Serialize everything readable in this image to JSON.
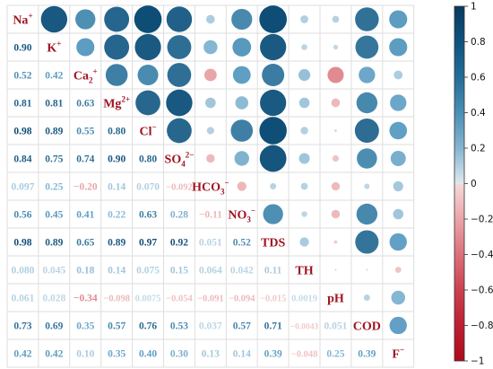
{
  "chart_data": {
    "type": "heatmap",
    "subtype": "correlation-matrix",
    "title": "",
    "variables": [
      "Na⁺",
      "K⁺",
      "Ca₂⁺",
      "Mg²⁺",
      "Cl⁻",
      "SO₄²⁻",
      "HCO₃⁻",
      "NO₃⁻",
      "TDS",
      "TH",
      "pH",
      "COD",
      "F⁻"
    ],
    "variable_label_parts": [
      {
        "base": "Na",
        "sup": "+",
        "sub": ""
      },
      {
        "base": "K",
        "sup": "+",
        "sub": ""
      },
      {
        "base": "Ca",
        "sup": "+",
        "sub": "2"
      },
      {
        "base": "Mg",
        "sup": "2+",
        "sub": ""
      },
      {
        "base": "Cl",
        "sup": "−",
        "sub": ""
      },
      {
        "base": "SO",
        "sup": "2−",
        "sub": "4"
      },
      {
        "base": "HCO",
        "sup": "−",
        "sub": "3"
      },
      {
        "base": "NO",
        "sup": "−",
        "sub": "3"
      },
      {
        "base": "TDS",
        "sup": "",
        "sub": ""
      },
      {
        "base": "TH",
        "sup": "",
        "sub": ""
      },
      {
        "base": "pH",
        "sup": "",
        "sub": ""
      },
      {
        "base": "COD",
        "sup": "",
        "sub": ""
      },
      {
        "base": "F",
        "sup": "−",
        "sub": ""
      }
    ],
    "matrix": [
      [
        1,
        0.9,
        0.52,
        0.81,
        0.98,
        0.84,
        0.097,
        0.56,
        0.98,
        0.08,
        0.061,
        0.73,
        0.42
      ],
      [
        0.9,
        1,
        0.42,
        0.81,
        0.89,
        0.75,
        0.25,
        0.45,
        0.89,
        0.045,
        0.028,
        0.69,
        0.42
      ],
      [
        0.52,
        0.42,
        1,
        0.63,
        0.55,
        0.74,
        -0.2,
        0.41,
        0.65,
        0.18,
        -0.34,
        0.35,
        0.1
      ],
      [
        0.81,
        0.81,
        0.63,
        1,
        0.8,
        0.9,
        0.14,
        0.22,
        0.89,
        0.14,
        -0.098,
        0.57,
        0.35
      ],
      [
        0.98,
        0.89,
        0.55,
        0.8,
        1,
        0.8,
        0.07,
        0.63,
        0.97,
        0.075,
        0.0075,
        0.76,
        0.4
      ],
      [
        0.84,
        0.75,
        0.74,
        0.9,
        0.8,
        1,
        -0.092,
        0.28,
        0.92,
        0.15,
        -0.054,
        0.53,
        0.3
      ],
      [
        0.097,
        0.25,
        -0.2,
        0.14,
        0.07,
        -0.092,
        1,
        -0.11,
        0.051,
        0.064,
        -0.091,
        0.037,
        0.13
      ],
      [
        0.56,
        0.45,
        0.41,
        0.22,
        0.63,
        0.28,
        -0.11,
        1,
        0.52,
        0.042,
        -0.094,
        0.57,
        0.14
      ],
      [
        0.98,
        0.89,
        0.65,
        0.89,
        0.97,
        0.92,
        0.051,
        0.52,
        1,
        0.11,
        -0.015,
        0.71,
        0.39
      ],
      [
        0.08,
        0.045,
        0.18,
        0.14,
        0.075,
        0.15,
        0.064,
        0.042,
        0.11,
        1,
        0.0019,
        -0.0043,
        -0.048
      ],
      [
        0.061,
        0.028,
        -0.34,
        -0.098,
        0.0075,
        -0.054,
        -0.091,
        -0.094,
        -0.015,
        0.0019,
        1,
        0.051,
        0.25
      ],
      [
        0.73,
        0.69,
        0.35,
        0.57,
        0.76,
        0.53,
        0.037,
        0.57,
        0.71,
        -0.0043,
        0.051,
        1,
        0.39
      ],
      [
        0.42,
        0.42,
        0.1,
        0.35,
        0.4,
        0.3,
        0.13,
        0.14,
        0.39,
        -0.048,
        0.25,
        0.39,
        1
      ]
    ],
    "lower_triangle_labels": [
      [],
      [
        "0.90"
      ],
      [
        "0.52",
        "0.42"
      ],
      [
        "0.81",
        "0.81",
        "0.63"
      ],
      [
        "0.98",
        "0.89",
        "0.55",
        "0.80"
      ],
      [
        "0.84",
        "0.75",
        "0.74",
        "0.90",
        "0.80"
      ],
      [
        "0.097",
        "0.25",
        "−0.20",
        "0.14",
        "0.070",
        "−0.092"
      ],
      [
        "0.56",
        "0.45",
        "0.41",
        "0.22",
        "0.63",
        "0.28",
        "−0.11"
      ],
      [
        "0.98",
        "0.89",
        "0.65",
        "0.89",
        "0.97",
        "0.92",
        "0.051",
        "0.52"
      ],
      [
        "0.080",
        "0.045",
        "0.18",
        "0.14",
        "0.075",
        "0.15",
        "0.064",
        "0.042",
        "0.11"
      ],
      [
        "0.061",
        "0.028",
        "−0.34",
        "−0.098",
        "0.0075",
        "−0.054",
        "−0.091",
        "−0.094",
        "−0.015",
        "0.0019"
      ],
      [
        "0.73",
        "0.69",
        "0.35",
        "0.57",
        "0.76",
        "0.53",
        "0.037",
        "0.57",
        "0.71",
        "−0.0043",
        "0.051"
      ],
      [
        "0.42",
        "0.42",
        "0.10",
        "0.35",
        "0.40",
        "0.30",
        "0.13",
        "0.14",
        "0.39",
        "−0.048",
        "0.25",
        "0.39"
      ]
    ],
    "lower_triangle": "numbers",
    "upper_triangle": "circles (size and color scale with correlation)",
    "diagonal": "variable names",
    "colorbar": {
      "ticks": [
        "1",
        "0.8",
        "0.6",
        "0.4",
        "0.2",
        "0",
        "−0.2",
        "−0.4",
        "−0.6",
        "−0.8",
        "−1"
      ],
      "tick_values": [
        1,
        0.8,
        0.6,
        0.4,
        0.2,
        0,
        -0.2,
        -0.4,
        -0.6,
        -0.8,
        -1
      ],
      "range": [
        -1,
        1
      ],
      "placement": "right"
    },
    "colors": {
      "positive_strong": "#0b4a73",
      "positive_mid": "#5fa0c4",
      "positive_weak": "#c5dbe8",
      "negative_weak": "#f2cccc",
      "negative_mid": "#de7f86",
      "negative_strong": "#b30e22",
      "diagonal_label": "#a01420",
      "grid": "#dedede"
    }
  }
}
